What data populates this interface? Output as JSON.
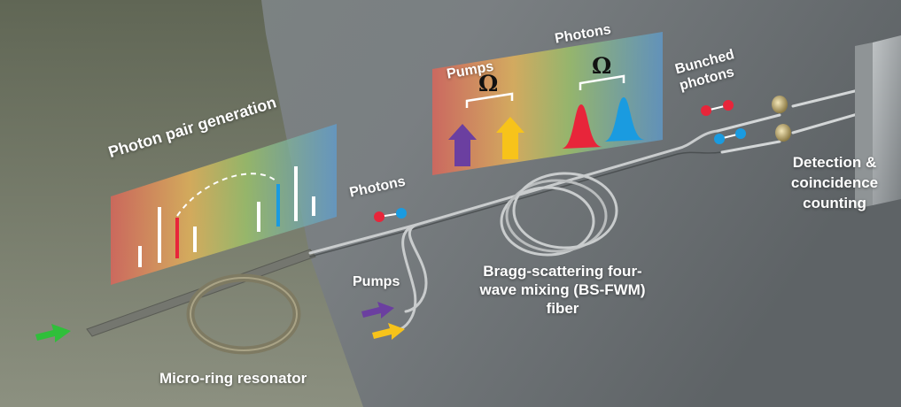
{
  "labels": {
    "photon_pair_generation": "Photon pair generation",
    "photons_left": "Photons",
    "pumps_left": "Pumps",
    "micro_ring": "Micro-ring resonator",
    "spectrum_pumps": "Pumps",
    "spectrum_photons": "Photons",
    "omega_pumps": "Ω",
    "omega_photons": "Ω",
    "bunched_line1": "Bunched",
    "bunched_line2": "photons",
    "bsfwm_line1": "Bragg-scattering four-",
    "bsfwm_line2": "wave mixing (BS-FWM)",
    "bsfwm_line3": "fiber",
    "detection_line1": "Detection &",
    "detection_line2": "coincidence",
    "detection_line3": "counting"
  },
  "colors": {
    "red": "#e8253a",
    "blue": "#1a9be0",
    "purple": "#6b3fa0",
    "yellow": "#f7c31a",
    "green": "#2fbf3a"
  }
}
